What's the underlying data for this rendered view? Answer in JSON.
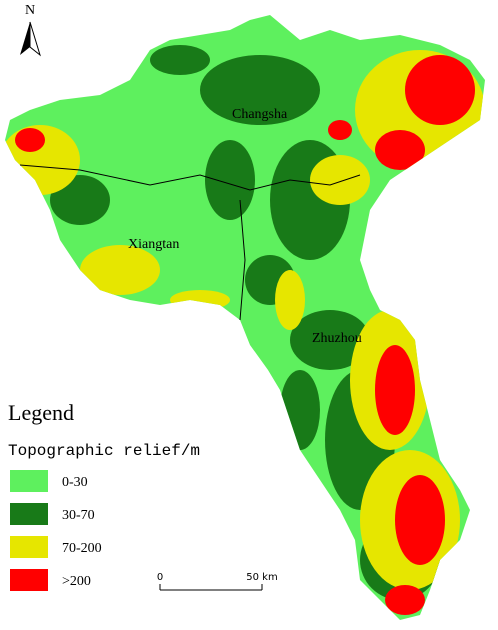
{
  "north_label": "N",
  "cities": [
    "Changsha",
    "Xiangtan",
    "Zhuzhou"
  ],
  "legend": {
    "title": "Legend",
    "subtitle": "Topographic relief/m",
    "items": [
      {
        "label": "0-30",
        "color": "#5ef05e"
      },
      {
        "label": "30-70",
        "color": "#187a18"
      },
      {
        "label": "70-200",
        "color": "#e6e600"
      },
      {
        "label": ">200",
        "color": "#ff0000"
      }
    ]
  },
  "scale_bar": {
    "start": "0",
    "end": "50 km"
  }
}
